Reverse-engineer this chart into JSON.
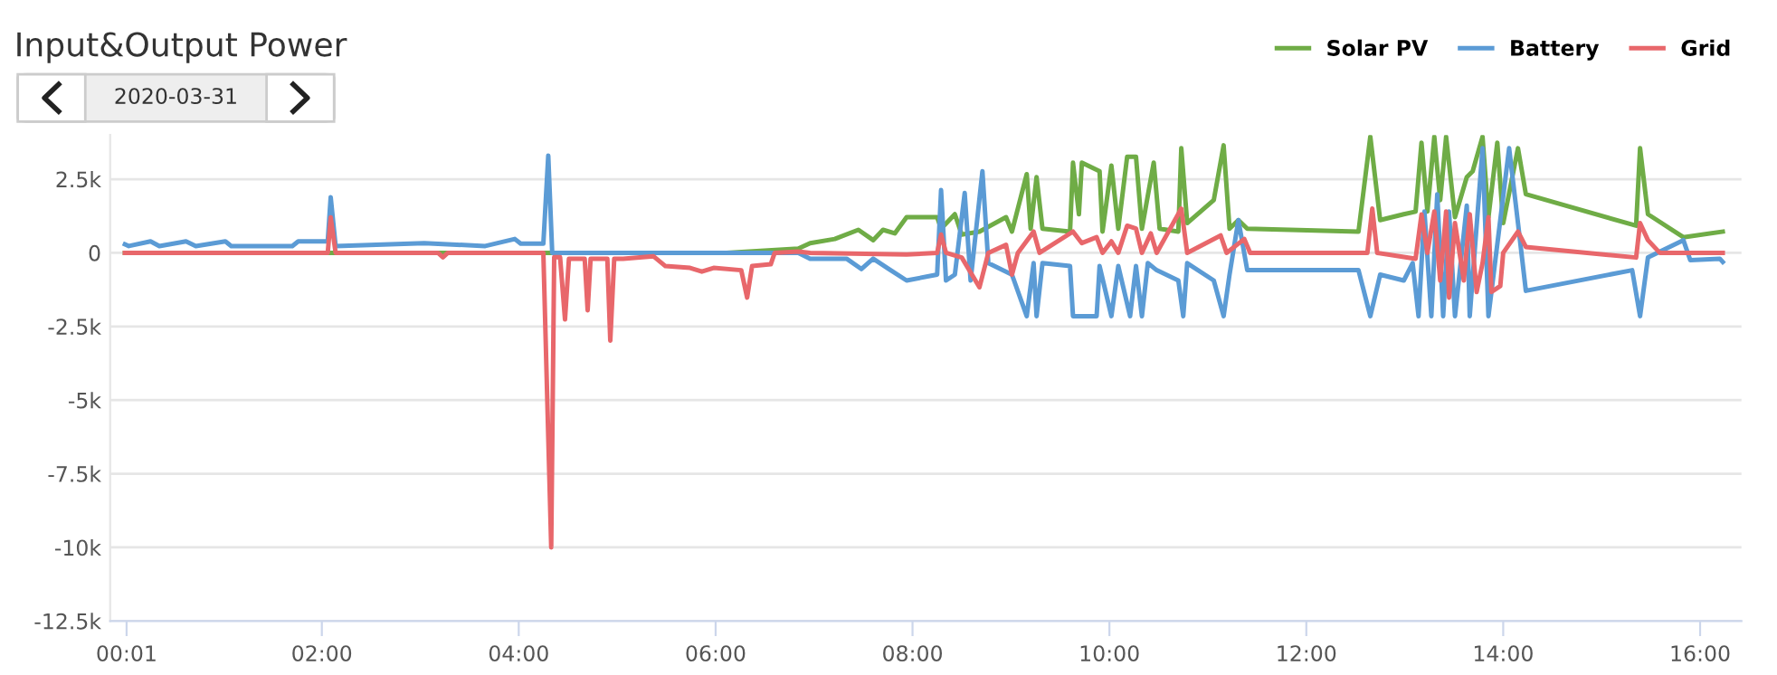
{
  "chart_data": {
    "type": "line",
    "title": "Input&Output Power",
    "subtitle": "2020-03-31",
    "xlim": [
      -0.15,
      16.42
    ],
    "ylim": [
      -12500,
      4000
    ],
    "xticks": [
      {
        "value": 0.0167,
        "label": "00:01"
      },
      {
        "value": 2,
        "label": "02:00"
      },
      {
        "value": 4,
        "label": "04:00"
      },
      {
        "value": 6,
        "label": "06:00"
      },
      {
        "value": 8,
        "label": "08:00"
      },
      {
        "value": 10,
        "label": "10:00"
      },
      {
        "value": 12,
        "label": "12:00"
      },
      {
        "value": 14,
        "label": "14:00"
      },
      {
        "value": 16,
        "label": "16:00"
      }
    ],
    "yticks": [
      {
        "value": -12500,
        "label": "-12.5k"
      },
      {
        "value": -10000,
        "label": "-10k"
      },
      {
        "value": -7500,
        "label": "-7.5k"
      },
      {
        "value": -5000,
        "label": "-5k"
      },
      {
        "value": -2500,
        "label": "-2.5k"
      },
      0,
      {
        "value": 2500,
        "label": "2.5k"
      }
    ],
    "grid": "y",
    "legend": "top right",
    "line_style": "solid",
    "series": [
      {
        "name": "Solar PV",
        "color": "#6fac46",
        "x": [
          0,
          6.11,
          6.84,
          6.96,
          7.21,
          7.45,
          7.6,
          7.7,
          7.82,
          7.94,
          8.25,
          8.29,
          8.43,
          8.5,
          8.68,
          8.95,
          9.01,
          9.16,
          9.2,
          9.26,
          9.32,
          9.6,
          9.63,
          9.69,
          9.72,
          9.9,
          9.93,
          10.02,
          10.09,
          10.18,
          10.27,
          10.33,
          10.45,
          10.51,
          10.7,
          10.73,
          10.79,
          11.06,
          11.16,
          11.22,
          11.31,
          11.4,
          12.53,
          12.65,
          12.75,
          12.99,
          13.11,
          13.17,
          13.23,
          13.3,
          13.36,
          13.42,
          13.51,
          13.63,
          13.69,
          13.79,
          13.85,
          13.94,
          14.0,
          14.15,
          14.23,
          15.35,
          15.39,
          15.47,
          15.83,
          16.23
        ],
        "values": [
          0,
          0,
          140,
          330,
          470,
          780,
          430,
          780,
          660,
          1210,
          1210,
          820,
          1310,
          620,
          720,
          1210,
          720,
          2670,
          820,
          2570,
          820,
          720,
          3060,
          1310,
          3060,
          2770,
          720,
          2960,
          820,
          3260,
          3260,
          820,
          3060,
          820,
          720,
          3550,
          1010,
          1790,
          3650,
          820,
          1110,
          820,
          720,
          3940,
          1110,
          1310,
          1400,
          3740,
          1400,
          3940,
          1790,
          3940,
          1210,
          2570,
          2770,
          3940,
          1210,
          3740,
          1010,
          3550,
          1990,
          920,
          3550,
          1310,
          530,
          720
        ]
      },
      {
        "name": "Battery",
        "color": "#5b9bd5",
        "x": [
          0,
          0.04,
          0.26,
          0.35,
          0.62,
          0.72,
          1.02,
          1.08,
          1.7,
          1.76,
          2.06,
          2.09,
          2.14,
          3.04,
          3.66,
          3.96,
          4.02,
          4.25,
          4.3,
          4.34,
          6.11,
          6.84,
          6.96,
          7.33,
          7.48,
          7.6,
          7.76,
          7.94,
          8.25,
          8.29,
          8.34,
          8.43,
          8.53,
          8.59,
          8.71,
          8.77,
          9.01,
          9.16,
          9.23,
          9.26,
          9.32,
          9.6,
          9.63,
          9.87,
          9.9,
          10.02,
          10.09,
          10.21,
          10.27,
          10.33,
          10.39,
          10.48,
          10.7,
          10.75,
          10.79,
          11.06,
          11.16,
          11.22,
          11.31,
          11.4,
          12.53,
          12.65,
          12.75,
          12.99,
          13.08,
          13.14,
          13.2,
          13.27,
          13.33,
          13.39,
          13.45,
          13.51,
          13.63,
          13.66,
          13.79,
          13.85,
          14.06,
          14.15,
          14.23,
          15.31,
          15.39,
          15.47,
          15.83,
          15.9,
          16.2,
          16.23
        ],
        "values": [
          290,
          230,
          390,
          230,
          390,
          230,
          390,
          230,
          230,
          390,
          390,
          1890,
          230,
          330,
          230,
          470,
          310,
          310,
          3300,
          0,
          0,
          0,
          -200,
          -200,
          -550,
          -200,
          -550,
          -940,
          -740,
          2130,
          -940,
          -740,
          2030,
          -940,
          2770,
          -350,
          -740,
          -2150,
          -350,
          -2150,
          -350,
          -450,
          -2150,
          -2150,
          -450,
          -2150,
          -450,
          -2150,
          -450,
          -2150,
          -350,
          -590,
          -940,
          -2150,
          -350,
          -940,
          -2150,
          -740,
          1110,
          -590,
          -590,
          -2150,
          -740,
          -940,
          -350,
          -2150,
          1400,
          -2150,
          1990,
          -2150,
          1400,
          -2150,
          1600,
          -2150,
          3550,
          -2150,
          3550,
          1010,
          -1290,
          -590,
          -2150,
          -160,
          430,
          -250,
          -200,
          -310
        ]
      },
      {
        "name": "Grid",
        "color": "#e8676b",
        "x": [
          0,
          2.06,
          2.09,
          2.14,
          3.18,
          3.23,
          3.28,
          4.25,
          4.33,
          4.36,
          4.42,
          4.47,
          4.51,
          4.67,
          4.7,
          4.73,
          4.9,
          4.93,
          4.97,
          5.06,
          5.37,
          5.49,
          5.74,
          5.86,
          5.98,
          6.26,
          6.32,
          6.37,
          6.56,
          6.6,
          6.84,
          6.96,
          7.94,
          8.25,
          8.29,
          8.34,
          8.5,
          8.68,
          8.77,
          8.95,
          9.01,
          9.07,
          9.23,
          9.29,
          9.63,
          9.72,
          9.87,
          9.93,
          10.02,
          10.09,
          10.18,
          10.27,
          10.33,
          10.42,
          10.48,
          10.73,
          10.79,
          11.13,
          11.19,
          11.37,
          11.43,
          12.62,
          12.67,
          12.72,
          13.11,
          13.17,
          13.23,
          13.3,
          13.36,
          13.42,
          13.45,
          13.51,
          13.6,
          13.66,
          13.73,
          13.79,
          13.85,
          13.88,
          13.97,
          14.0,
          14.15,
          14.23,
          15.35,
          15.39,
          15.47,
          15.59,
          16.23
        ],
        "values": [
          0,
          0,
          1200,
          0,
          0,
          -150,
          0,
          0,
          -10000,
          -150,
          -150,
          -2260,
          -200,
          -200,
          -1950,
          -200,
          -200,
          -2980,
          -200,
          -200,
          -120,
          -450,
          -510,
          -640,
          -510,
          -590,
          -1520,
          -450,
          -390,
          0,
          40,
          0,
          -60,
          0,
          620,
          0,
          -160,
          -1170,
          0,
          270,
          -740,
          0,
          720,
          0,
          720,
          330,
          530,
          0,
          390,
          0,
          920,
          820,
          0,
          660,
          0,
          1500,
          0,
          590,
          0,
          470,
          0,
          0,
          1500,
          0,
          -200,
          1300,
          0,
          1400,
          -940,
          1400,
          -1520,
          1010,
          -940,
          1310,
          -1330,
          -350,
          1210,
          -1330,
          -1130,
          0,
          720,
          200,
          -160,
          1010,
          430,
          0,
          0
        ]
      }
    ]
  }
}
